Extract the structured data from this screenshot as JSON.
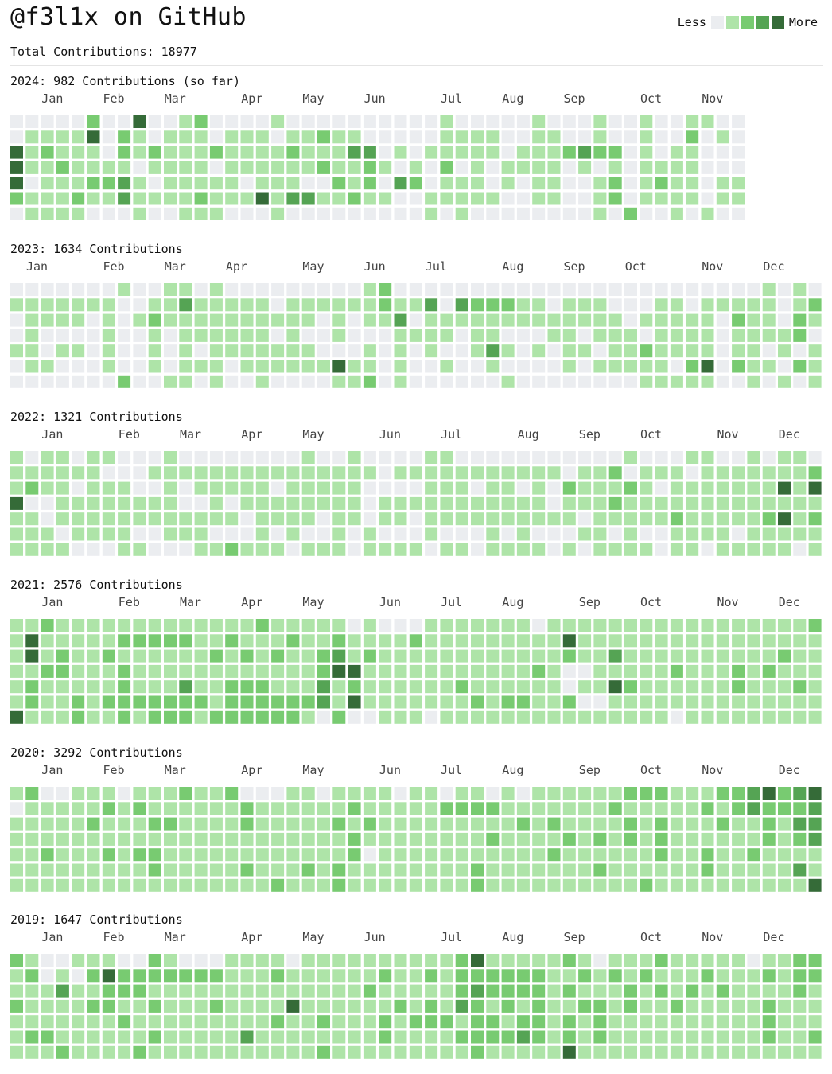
{
  "header": {
    "title": "@f3l1x on GitHub",
    "total": "Total Contributions: 18977"
  },
  "legend": {
    "less": "Less",
    "more": "More",
    "levels": [
      "#ebedf0",
      "#aee4a8",
      "#78cb71",
      "#55a454",
      "#356b38"
    ]
  },
  "chart_data": [
    {
      "type": "heatmap",
      "year": 2024,
      "title": "2024: 982 Contributions (so far)",
      "weeks": 48,
      "levels_range": [
        0,
        4
      ],
      "months": [
        {
          "label": "Jan",
          "week": 1
        },
        {
          "label": "Feb",
          "week": 5
        },
        {
          "label": "Mar",
          "week": 9
        },
        {
          "label": "Apr",
          "week": 14
        },
        {
          "label": "May",
          "week": 18
        },
        {
          "label": "Jun",
          "week": 22
        },
        {
          "label": "Jul",
          "week": 27
        },
        {
          "label": "Aug",
          "week": 31
        },
        {
          "label": "Sep",
          "week": 35
        },
        {
          "label": "Oct",
          "week": 40
        },
        {
          "label": "Nov",
          "week": 44
        }
      ],
      "rows": [
        "000002004001200001000000000010000010001001001100",
        "011114021011101110112110000011110011001001002010",
        "412111021211121111211133010111110111232201011000",
        "411211110111101111112112101020101111010101111000",
        "401112231011111011100212032011101011001201211011",
        "211121131111211141331121100111110011001201111011",
        "011110001001110001000000000101000000001020010100"
      ]
    },
    {
      "type": "heatmap",
      "year": 2023,
      "title": "2023: 1634 Contributions",
      "weeks": 53,
      "levels_range": [
        0,
        4
      ],
      "months": [
        {
          "label": "Jan",
          "week": 0
        },
        {
          "label": "Feb",
          "week": 5
        },
        {
          "label": "Mar",
          "week": 9
        },
        {
          "label": "Apr",
          "week": 13
        },
        {
          "label": "May",
          "week": 18
        },
        {
          "label": "Jun",
          "week": 22
        },
        {
          "label": "Jul",
          "week": 26
        },
        {
          "label": "Aug",
          "week": 31
        },
        {
          "label": "Sep",
          "week": 35
        },
        {
          "label": "Oct",
          "week": 39
        },
        {
          "label": "Nov",
          "week": 44
        },
        {
          "label": "Dec",
          "week": 48
        }
      ],
      "rows": [
        "00000001001101000000000120000000000000000000000001010",
        "11111110011311111011111121130322211011100011011111012",
        "01111010121111111111010113011111111111110111110211021",
        "01000010010111111010010001111011000110111011110111120",
        "11011010010101111111000101010013101011011211110110101",
        "01100010010111011111141101001001000010111110240211021",
        "00000002001101001000011201000000100000000111110010101"
      ]
    },
    {
      "type": "heatmap",
      "year": 2022,
      "title": "2022: 1321 Contributions",
      "weeks": 53,
      "levels_range": [
        0,
        4
      ],
      "months": [
        {
          "label": "Jan",
          "week": 1
        },
        {
          "label": "Feb",
          "week": 6
        },
        {
          "label": "Mar",
          "week": 10
        },
        {
          "label": "Apr",
          "week": 14
        },
        {
          "label": "May",
          "week": 18
        },
        {
          "label": "Jun",
          "week": 23
        },
        {
          "label": "Jul",
          "week": 27
        },
        {
          "label": "Aug",
          "week": 32
        },
        {
          "label": "Sep",
          "week": 36
        },
        {
          "label": "Oct",
          "week": 40
        },
        {
          "label": "Nov",
          "week": 45
        },
        {
          "label": "Dec",
          "week": 49
        }
      ],
      "rows": [
        "10110110001000000001001000011000000000001000110010110",
        "11111100011111111111111101111111111101120111011111112",
        "12110111001011111011111000011101101021112101111111414",
        "40011111111001011111111011111111111011121111111111111",
        "11011111111111101111011011011111111110111112111112412",
        "11101111001110001010010100010001010001101001111011111",
        "11110001100011211101110111101101111010111101101111101"
      ]
    },
    {
      "type": "heatmap",
      "year": 2021,
      "title": "2021: 2576 Contributions",
      "weeks": 53,
      "levels_range": [
        0,
        4
      ],
      "months": [
        {
          "label": "Jan",
          "week": 1
        },
        {
          "label": "Feb",
          "week": 6
        },
        {
          "label": "Mar",
          "week": 10
        },
        {
          "label": "Apr",
          "week": 14
        },
        {
          "label": "May",
          "week": 18
        },
        {
          "label": "Jun",
          "week": 23
        },
        {
          "label": "Jul",
          "week": 27
        },
        {
          "label": "Aug",
          "week": 31
        },
        {
          "label": "Sep",
          "week": 36
        },
        {
          "label": "Oct",
          "week": 40
        },
        {
          "label": "Nov",
          "week": 45
        },
        {
          "label": "Dec",
          "week": 49
        }
      ],
      "rows": [
        "11211111111111112111110100011111110111111111111111112",
        "14111112222211211121121111211111111141111111111111111",
        "14121121111112121211231211111111111121131111111111211",
        "11221112111111111111244111111111112100111112111212111",
        "12111112111311222111312111111211111101142111111211121",
        "12112122222221222222314111111121221120011111111111111",
        "41112112122212222221020011101111111111111110111111111"
      ]
    },
    {
      "type": "heatmap",
      "year": 2020,
      "title": "2020: 3292 Contributions",
      "weeks": 53,
      "levels_range": [
        0,
        4
      ],
      "months": [
        {
          "label": "Jan",
          "week": 1
        },
        {
          "label": "Feb",
          "week": 5
        },
        {
          "label": "Mar",
          "week": 9
        },
        {
          "label": "Apr",
          "week": 14
        },
        {
          "label": "May",
          "week": 18
        },
        {
          "label": "Jun",
          "week": 23
        },
        {
          "label": "Jul",
          "week": 27
        },
        {
          "label": "Aug",
          "week": 31
        },
        {
          "label": "Sep",
          "week": 36
        },
        {
          "label": "Oct",
          "week": 40
        },
        {
          "label": "Nov",
          "week": 44
        },
        {
          "label": "Dec",
          "week": 49
        }
      ],
      "rows": [
        "12001110111211200011011110110110101111112221112234234",
        "01111121211111121111112111112222111111121111121232223",
        "11111211122111121111121211111111121211112121112112133",
        "11111111111111111111112111111112111121212121111112123",
        "11211121221111111111112011111111111211111121121121111",
        "11111111121111121112121111111121111111211111121111131",
        "11111111111111111211121111111121111111111211111111114"
      ]
    },
    {
      "type": "heatmap",
      "year": 2019,
      "title": "2019: 1647 Contributions",
      "weeks": 53,
      "levels_range": [
        0,
        4
      ],
      "months": [
        {
          "label": "Jan",
          "week": 1
        },
        {
          "label": "Feb",
          "week": 5
        },
        {
          "label": "Mar",
          "week": 9
        },
        {
          "label": "Apr",
          "week": 14
        },
        {
          "label": "May",
          "week": 18
        },
        {
          "label": "Jun",
          "week": 22
        },
        {
          "label": "Jul",
          "week": 27
        },
        {
          "label": "Aug",
          "week": 31
        },
        {
          "label": "Sep",
          "week": 35
        },
        {
          "label": "Oct",
          "week": 40
        },
        {
          "label": "Nov",
          "week": 44
        },
        {
          "label": "Dec",
          "week": 48
        }
      ],
      "rows": [
        "21001110021000111101111111111241111121011121111101122",
        "12010242222222111211111121121222222112121211121112122",
        "11131122211111111111111211111232222121112121212111121",
        "21111221121112111141111112121321212112212112111112111",
        "11111112111111111211211121222122122121211111111112111",
        "12211111121111131111111121111222232121211111111112112",
        "11121111211111111111211111111121111141111111111111111"
      ]
    }
  ]
}
